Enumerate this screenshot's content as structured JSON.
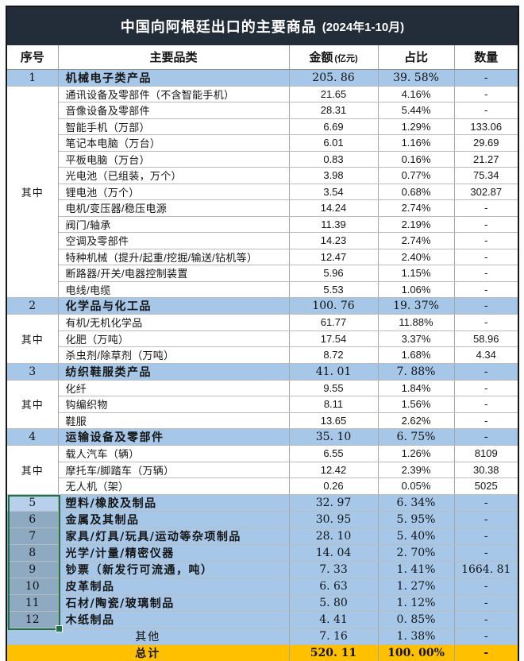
{
  "title": {
    "main": "中国向阿根廷出口的主要商品",
    "paren": "(2024年1-10月)"
  },
  "header": {
    "no": "序号",
    "category": "主要品类",
    "amount": "金额",
    "amount_unit": "(亿元)",
    "share": "占比",
    "qty": "数量"
  },
  "colors": {
    "title_bar": "#232c39",
    "highlight_row_blue": "#a6c7e7",
    "selected_cell_shade": "#8ea9c2",
    "total_row_amber": "#ffc000",
    "selection_border_green": "#1f7244"
  },
  "rows": [
    {
      "kind": "main",
      "no": "1",
      "name": "机械电子类产品",
      "amount": "205. 86",
      "share": "39. 58%",
      "qty": "-"
    },
    {
      "kind": "sub",
      "group_label": "其中",
      "group_span": 13,
      "name": "通讯设备及零部件（不含智能手机）",
      "amount": "21.65",
      "share": "4.16%",
      "qty": "-"
    },
    {
      "kind": "sub",
      "name": "音像设备及零部件",
      "amount": "28.31",
      "share": "5.44%",
      "qty": "-"
    },
    {
      "kind": "sub",
      "name": "智能手机（万部）",
      "amount": "6.69",
      "share": "1.29%",
      "qty": "133.06"
    },
    {
      "kind": "sub",
      "name": "笔记本电脑（万台）",
      "amount": "6.01",
      "share": "1.16%",
      "qty": "29.69"
    },
    {
      "kind": "sub",
      "name": "平板电脑（万台）",
      "amount": "0.83",
      "share": "0.16%",
      "qty": "21.27"
    },
    {
      "kind": "sub",
      "name": "光电池（已组装，万个）",
      "amount": "3.98",
      "share": "0.77%",
      "qty": "75.34"
    },
    {
      "kind": "sub",
      "name": "锂电池（万个）",
      "amount": "3.54",
      "share": "0.68%",
      "qty": "302.87"
    },
    {
      "kind": "sub",
      "name": "电机/变压器/稳压电源",
      "amount": "14.24",
      "share": "2.74%",
      "qty": "-"
    },
    {
      "kind": "sub",
      "name": "阀门/轴承",
      "amount": "11.39",
      "share": "2.19%",
      "qty": "-"
    },
    {
      "kind": "sub",
      "name": "空调及零部件",
      "amount": "14.23",
      "share": "2.74%",
      "qty": "-"
    },
    {
      "kind": "sub",
      "name": "特种机械（提升/起重/挖掘/输送/钻机等）",
      "amount": "12.47",
      "share": "2.40%",
      "qty": "-"
    },
    {
      "kind": "sub",
      "name": "断路器/开关/电器控制装置",
      "amount": "5.96",
      "share": "1.15%",
      "qty": "-"
    },
    {
      "kind": "sub",
      "name": "电线/电缆",
      "amount": "5.53",
      "share": "1.06%",
      "qty": "-"
    },
    {
      "kind": "main",
      "no": "2",
      "name": "化学品与化工品",
      "amount": "100. 76",
      "share": "19. 37%",
      "qty": "-"
    },
    {
      "kind": "sub",
      "group_label": "其中",
      "group_span": 3,
      "name": "有机/无机化学品",
      "amount": "61.77",
      "share": "11.88%",
      "qty": "-"
    },
    {
      "kind": "sub",
      "name": "化肥（万吨）",
      "amount": "17.54",
      "share": "3.37%",
      "qty": "58.96"
    },
    {
      "kind": "sub",
      "name": "杀虫剂/除草剂（万吨）",
      "amount": "8.72",
      "share": "1.68%",
      "qty": "4.34"
    },
    {
      "kind": "main",
      "no": "3",
      "name": "纺织鞋服类产品",
      "amount": "41. 01",
      "share": "7. 88%",
      "qty": "-"
    },
    {
      "kind": "sub",
      "group_label": "其中",
      "group_span": 3,
      "name": "化纤",
      "amount": "9.55",
      "share": "1.84%",
      "qty": "-"
    },
    {
      "kind": "sub",
      "name": "钩编织物",
      "amount": "8.11",
      "share": "1.56%",
      "qty": "-"
    },
    {
      "kind": "sub",
      "name": "鞋服",
      "amount": "13.65",
      "share": "2.62%",
      "qty": "-"
    },
    {
      "kind": "main",
      "no": "4",
      "name": "运输设备及零部件",
      "amount": "35. 10",
      "share": "6. 75%",
      "qty": "-"
    },
    {
      "kind": "sub",
      "group_label": "其中",
      "group_span": 3,
      "name": "载人汽车（辆）",
      "amount": "6.55",
      "share": "1.26%",
      "qty": "8109"
    },
    {
      "kind": "sub",
      "name": "摩托车/脚踏车（万辆）",
      "amount": "12.42",
      "share": "2.39%",
      "qty": "30.38"
    },
    {
      "kind": "sub",
      "name": "无人机（架）",
      "amount": "0.26",
      "share": "0.05%",
      "qty": "5025"
    },
    {
      "kind": "main",
      "sel": "active",
      "no": "5",
      "name": "塑料/橡胶及制品",
      "amount": "32. 97",
      "share": "6. 34%",
      "qty": "-"
    },
    {
      "kind": "main",
      "sel": "shaded",
      "no": "6",
      "name": "金属及其制品",
      "amount": "30. 95",
      "share": "5. 95%",
      "qty": "-"
    },
    {
      "kind": "main",
      "sel": "shaded",
      "no": "7",
      "name": "家具/灯具/玩具/运动等杂项制品",
      "amount": "28. 10",
      "share": "5. 40%",
      "qty": "-"
    },
    {
      "kind": "main",
      "sel": "shaded",
      "no": "8",
      "name": "光学/计量/精密仪器",
      "amount": "14. 04",
      "share": "2. 70%",
      "qty": "-"
    },
    {
      "kind": "main",
      "sel": "shaded",
      "no": "9",
      "name": "钞票（新发行可流通，吨）",
      "amount": "7. 33",
      "share": "1. 41%",
      "qty": "1664. 81"
    },
    {
      "kind": "main",
      "sel": "shaded",
      "no": "10",
      "name": "皮革制品",
      "amount": "6. 63",
      "share": "1. 27%",
      "qty": "-"
    },
    {
      "kind": "main",
      "sel": "shaded",
      "no": "11",
      "name": "石材/陶瓷/玻璃制品",
      "amount": "5. 80",
      "share": "1. 12%",
      "qty": "-"
    },
    {
      "kind": "main",
      "sel": "shaded",
      "no": "12",
      "name": "木纸制品",
      "amount": "4. 41",
      "share": "0. 85%",
      "qty": "-"
    },
    {
      "kind": "other",
      "name": "其他",
      "amount": "7. 16",
      "share": "1. 38%",
      "qty": "-"
    },
    {
      "kind": "total",
      "name": "总计",
      "amount": "520. 11",
      "share": "100. 00%",
      "qty": "-"
    }
  ]
}
